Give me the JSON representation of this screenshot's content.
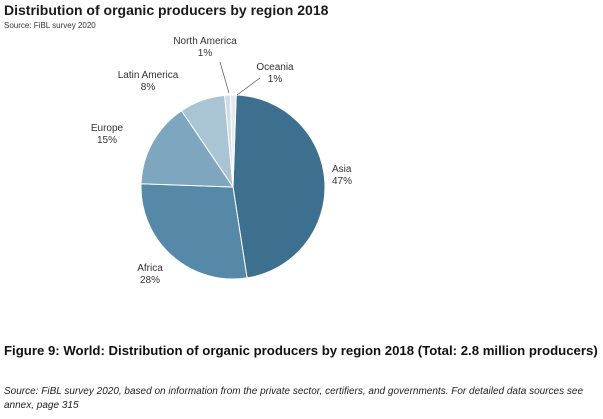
{
  "chart_data": {
    "type": "pie",
    "title": "Distribution of organic producers by region 2018",
    "subtitle": "Source: FiBL survey 2020",
    "slices": [
      {
        "key": "asia",
        "name": "Asia",
        "value": 47,
        "label": "47%",
        "color": "#3d6f8e"
      },
      {
        "key": "africa",
        "name": "Africa",
        "value": 28,
        "label": "28%",
        "color": "#5688a7"
      },
      {
        "key": "europe",
        "name": "Europe",
        "value": 15,
        "label": "15%",
        "color": "#7ea6be"
      },
      {
        "key": "latin-america",
        "name": "Latin America",
        "value": 8,
        "label": "8%",
        "color": "#a9c4d3"
      },
      {
        "key": "north-america",
        "name": "North America",
        "value": 1,
        "label": "1%",
        "color": "#cfdde6"
      },
      {
        "key": "oceania",
        "name": "Oceania",
        "value": 1,
        "label": "1%",
        "color": "#e4ecf1"
      }
    ]
  },
  "caption": "Figure 9: World: Distribution of organic producers by region 2018 (Total: 2.8 million producers)",
  "source_note": "Source: FiBL survey 2020, based on information from the private sector, certifiers, and governments. For detailed data sources see annex, page 315"
}
